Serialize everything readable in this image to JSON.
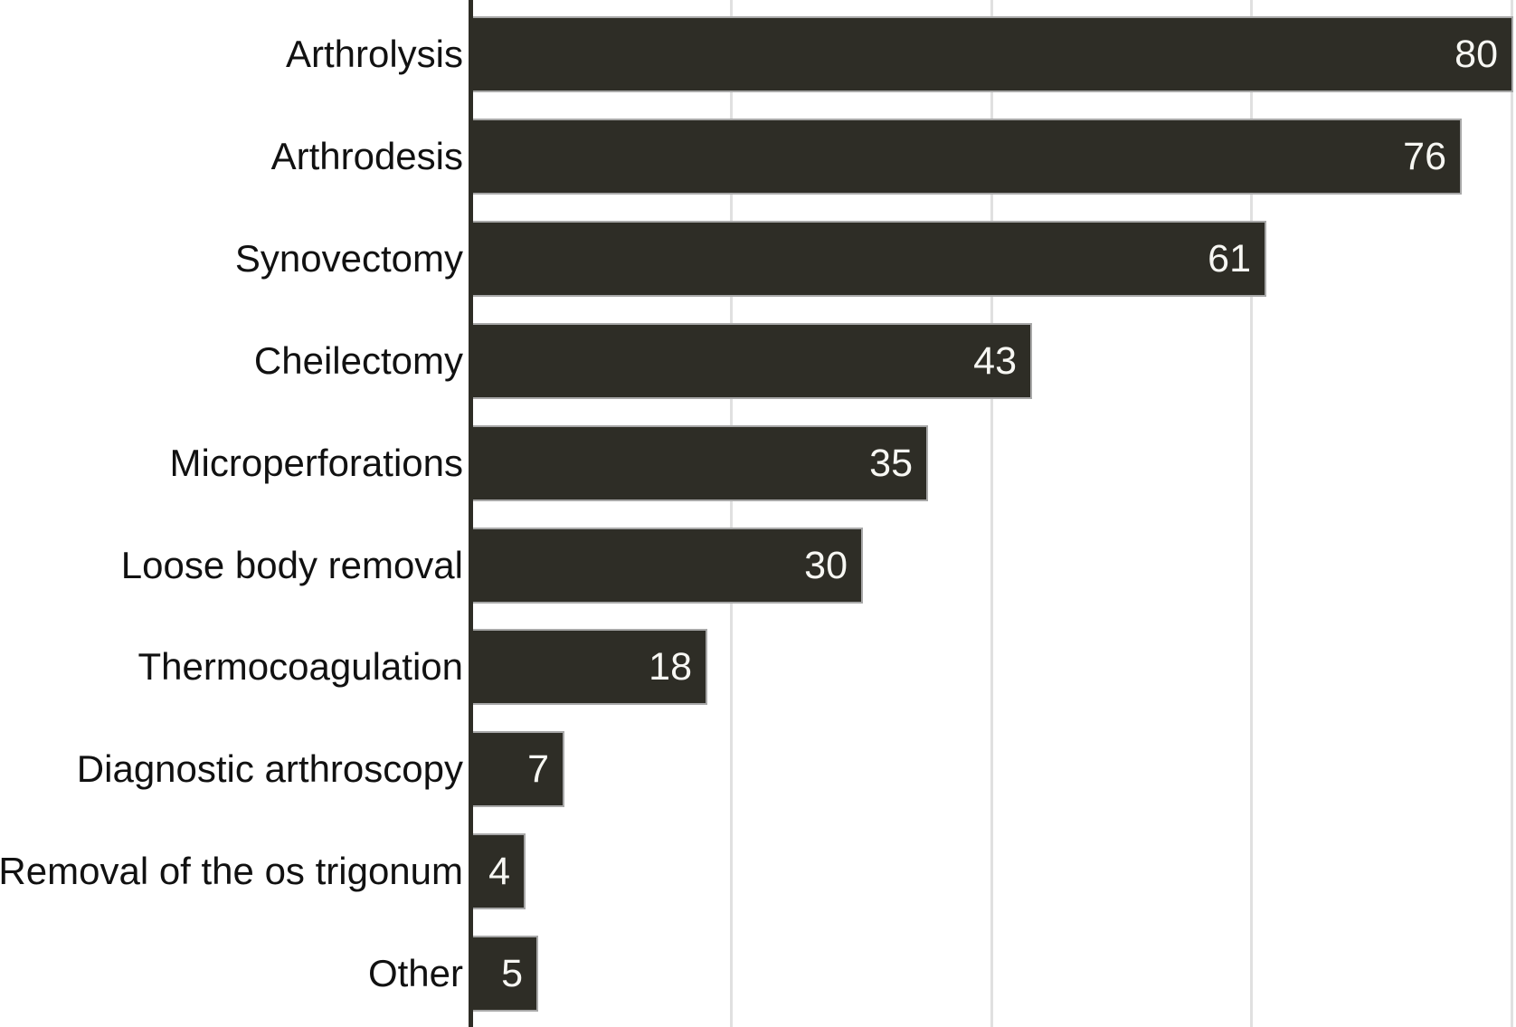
{
  "chart_data": {
    "type": "bar",
    "orientation": "horizontal",
    "title": "",
    "xlabel": "",
    "ylabel": "",
    "categories": [
      "Arthrolysis",
      "Arthrodesis",
      "Synovectomy",
      "Cheilectomy",
      "Microperforations",
      "Loose body removal",
      "Thermocoagulation",
      "Diagnostic arthroscopy",
      "Removal of the os trigonum",
      "Other"
    ],
    "values": [
      80,
      76,
      61,
      43,
      35,
      30,
      18,
      7,
      4,
      5
    ],
    "xlim": [
      0,
      80
    ],
    "gridline_values": [
      20,
      40,
      60,
      80
    ],
    "grid": "vertical-only",
    "legend_position": "none",
    "value_label_position": "inside-end",
    "colors": {
      "bar": "#2e2d26",
      "axis": "#2e2d26",
      "gridline": "#e0e0e0",
      "bar_outline": "#a8a8a8",
      "label_text": "#111111",
      "value_text": "#f7f7f3",
      "background": "#ffffff"
    }
  }
}
